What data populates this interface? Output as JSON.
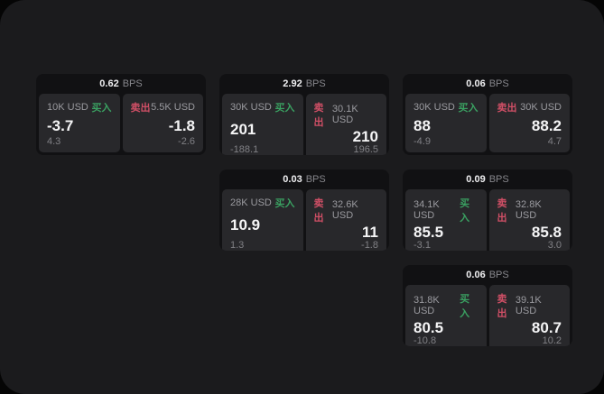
{
  "labels": {
    "bps_unit": "BPS",
    "buy": "买入",
    "sell": "卖出"
  },
  "colors": {
    "page_bg": "#050505",
    "panel_bg": "#1b1b1d",
    "card_bg": "#111113",
    "cell_bg": "#28282b",
    "price_text": "#f5f5f6",
    "muted_text": "#808085",
    "buy_green": "#3aa061",
    "sell_red": "#d04f66"
  },
  "cards": [
    {
      "bps": "0.62",
      "buy": {
        "size": "10K USD",
        "price": "-3.7",
        "delta": "4.3"
      },
      "sell": {
        "size": "5.5K USD",
        "price": "-1.8",
        "delta": "-2.6"
      }
    },
    {
      "bps": "2.92",
      "buy": {
        "size": "30K USD",
        "price": "201",
        "delta": "-188.1"
      },
      "sell": {
        "size": "30.1K USD",
        "price": "210",
        "delta": "196.5"
      }
    },
    {
      "bps": "0.06",
      "buy": {
        "size": "30K USD",
        "price": "88",
        "delta": "-4.9"
      },
      "sell": {
        "size": "30K USD",
        "price": "88.2",
        "delta": "4.7"
      }
    },
    {
      "bps": "0.03",
      "buy": {
        "size": "28K USD",
        "price": "10.9",
        "delta": "1.3"
      },
      "sell": {
        "size": "32.6K USD",
        "price": "11",
        "delta": "-1.8"
      }
    },
    {
      "bps": "0.09",
      "buy": {
        "size": "34.1K USD",
        "price": "85.5",
        "delta": "-3.1"
      },
      "sell": {
        "size": "32.8K USD",
        "price": "85.8",
        "delta": "3.0"
      }
    },
    {
      "bps": "0.06",
      "buy": {
        "size": "31.8K USD",
        "price": "80.5",
        "delta": "-10.8"
      },
      "sell": {
        "size": "39.1K USD",
        "price": "80.7",
        "delta": "10.2"
      }
    }
  ]
}
